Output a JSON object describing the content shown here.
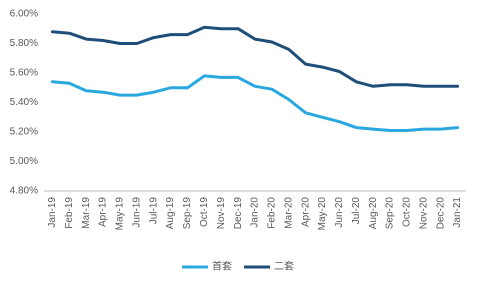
{
  "chart_data": {
    "type": "line",
    "categories": [
      "Jan-19",
      "Feb-19",
      "Mar-19",
      "Apr-19",
      "May-19",
      "Jun-19",
      "Jul-19",
      "Aug-19",
      "Sep-19",
      "Oct-19",
      "Nov-19",
      "Dec-19",
      "Jan-20",
      "Feb-20",
      "Mar-20",
      "Apr-20",
      "May-20",
      "Jun-20",
      "Jul-20",
      "Aug-20",
      "Sep-20",
      "Oct-20",
      "Nov-20",
      "Dec-20",
      "Jan-21"
    ],
    "series": [
      {
        "name": "首套",
        "color": "#29a8e0",
        "values": [
          5.54,
          5.53,
          5.48,
          5.47,
          5.45,
          5.45,
          5.47,
          5.5,
          5.5,
          5.58,
          5.57,
          5.57,
          5.51,
          5.49,
          5.42,
          5.33,
          5.3,
          5.27,
          5.23,
          5.22,
          5.21,
          5.21,
          5.22,
          5.22,
          5.23
        ]
      },
      {
        "name": "二套",
        "color": "#1f4e79",
        "values": [
          5.88,
          5.87,
          5.83,
          5.82,
          5.8,
          5.8,
          5.84,
          5.86,
          5.86,
          5.91,
          5.9,
          5.9,
          5.83,
          5.81,
          5.76,
          5.66,
          5.64,
          5.61,
          5.54,
          5.51,
          5.52,
          5.52,
          5.51,
          5.51,
          5.51
        ]
      }
    ],
    "ylim": [
      4.8,
      6.0
    ],
    "yticks": [
      {
        "value": 4.8,
        "label": "4.80%"
      },
      {
        "value": 5.0,
        "label": "5.00%"
      },
      {
        "value": 5.2,
        "label": "5.20%"
      },
      {
        "value": 5.4,
        "label": "5.40%"
      },
      {
        "value": 5.6,
        "label": "5.60%"
      },
      {
        "value": 5.8,
        "label": "5.80%"
      },
      {
        "value": 6.0,
        "label": "6.00%"
      }
    ],
    "grid": false,
    "legend": "bottom"
  }
}
